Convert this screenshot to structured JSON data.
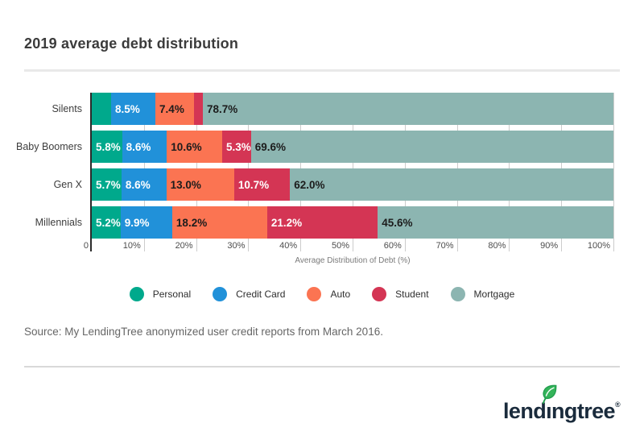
{
  "page": {
    "title": "2019 average debt distribution",
    "source_note": "Source: My LendingTree anonymized user credit reports from March 2016."
  },
  "chart_data": {
    "type": "bar",
    "stacked": true,
    "orientation": "horizontal",
    "title": "2019 average debt distribution",
    "categories": [
      "Silents",
      "Baby Boomers",
      "Gen X",
      "Millennials"
    ],
    "series": [
      {
        "name": "Personal",
        "color": "#00a98c",
        "label_color": "#ffffff",
        "values": [
          3.7,
          5.8,
          5.7,
          5.2
        ],
        "labels": [
          "",
          "5.8%",
          "5.7%",
          "5.2%"
        ]
      },
      {
        "name": "Credit Card",
        "color": "#2191d9",
        "label_color": "#ffffff",
        "values": [
          8.5,
          8.6,
          8.6,
          9.9
        ],
        "labels": [
          "8.5%",
          "8.6%",
          "8.6%",
          "9.9%"
        ]
      },
      {
        "name": "Auto",
        "color": "#fb7452",
        "label_color": "#1c1c1c",
        "values": [
          7.4,
          10.6,
          13.0,
          18.2
        ],
        "labels": [
          "7.4%",
          "10.6%",
          "13.0%",
          "18.2%"
        ]
      },
      {
        "name": "Student",
        "color": "#d43554",
        "label_color": "#ffffff",
        "values": [
          1.7,
          5.3,
          10.7,
          21.2
        ],
        "labels": [
          "",
          "5.3%",
          "10.7%",
          "21.2%"
        ]
      },
      {
        "name": "Mortgage",
        "color": "#8cb5b1",
        "label_color": "#1c1c1c",
        "values": [
          78.7,
          69.6,
          62.0,
          45.6
        ],
        "labels": [
          "78.7%",
          "69.6%",
          "62.0%",
          "45.6%"
        ]
      }
    ],
    "xlabel": "Average Distribution of Debt (%)",
    "xlim": [
      0,
      100
    ],
    "xticks": [
      {
        "value": 0,
        "label": "0"
      },
      {
        "value": 10,
        "label": "10%"
      },
      {
        "value": 20,
        "label": "20%"
      },
      {
        "value": 30,
        "label": "30%"
      },
      {
        "value": 40,
        "label": "40%"
      },
      {
        "value": 50,
        "label": "50%"
      },
      {
        "value": 60,
        "label": "60%"
      },
      {
        "value": 70,
        "label": "70%"
      },
      {
        "value": 80,
        "label": "80%"
      },
      {
        "value": 90,
        "label": "90%"
      },
      {
        "value": 100,
        "label": "100%"
      }
    ],
    "grid": "vertical",
    "legend_position": "bottom"
  },
  "logo": {
    "brand": "lendingtree",
    "reg": "®",
    "parts": {
      "pre": "lend",
      "dotless_i": "ı",
      "post": "ngtree"
    },
    "text_color": "#1a2b3c",
    "leaf_green": "#34b45a",
    "leaf_dark": "#1f9c4c"
  }
}
